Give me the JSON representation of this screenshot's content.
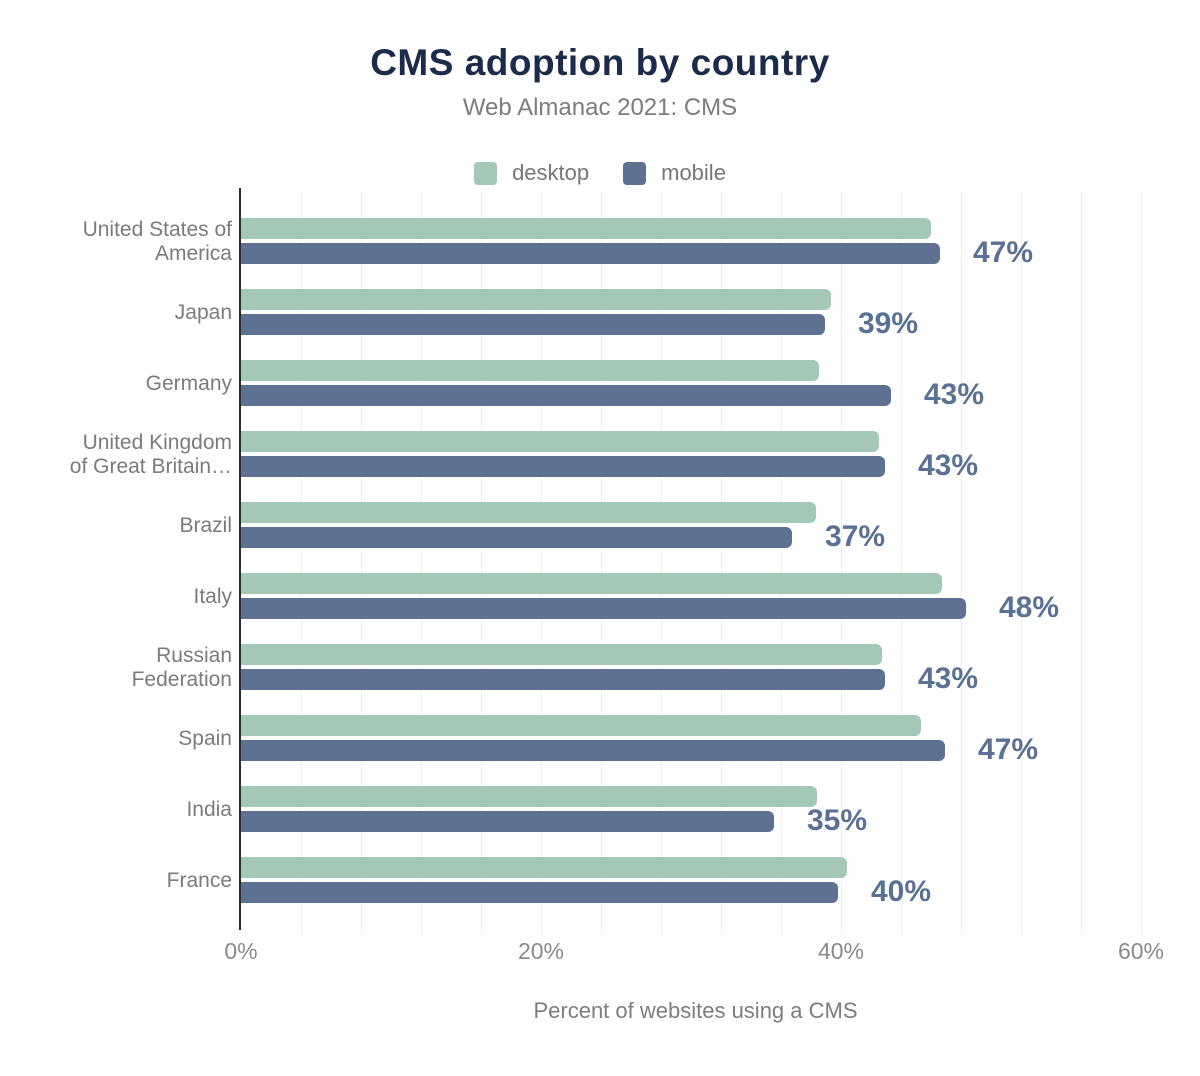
{
  "header": {
    "title": "CMS adoption by country",
    "subtitle": "Web Almanac 2021: CMS"
  },
  "legend": {
    "items": [
      {
        "label": "desktop",
        "color": "#a3c9b6"
      },
      {
        "label": "mobile",
        "color": "#5e7190"
      }
    ]
  },
  "colors": {
    "title": "#1b2b4b",
    "muted_text": "#7c7c7c",
    "desktop_bar": "#a3c9b6",
    "mobile_bar": "#5e7190",
    "value_label": "#5a7193",
    "axis_line": "#2d2d2d",
    "gridline": "#f1f1f1"
  },
  "chart_data": {
    "type": "bar",
    "orientation": "horizontal",
    "title": "CMS adoption by country",
    "subtitle": "Web Almanac 2021: CMS",
    "categories": [
      "United States of America",
      "Japan",
      "Germany",
      "United Kingdom of Great Britain…",
      "Brazil",
      "Italy",
      "Russian Federation",
      "Spain",
      "India",
      "France"
    ],
    "category_label_lines": [
      [
        "United States of",
        "America"
      ],
      [
        "Japan"
      ],
      [
        "Germany"
      ],
      [
        "United Kingdom",
        "of Great Britain…"
      ],
      [
        "Brazil"
      ],
      [
        "Italy"
      ],
      [
        "Russian",
        "Federation"
      ],
      [
        "Spain"
      ],
      [
        "India"
      ],
      [
        "France"
      ]
    ],
    "series": [
      {
        "name": "desktop",
        "values": [
          46.0,
          39.3,
          38.5,
          42.5,
          38.3,
          46.7,
          42.7,
          45.3,
          38.4,
          40.4
        ]
      },
      {
        "name": "mobile",
        "values": [
          46.6,
          38.9,
          43.3,
          42.9,
          36.7,
          48.3,
          42.9,
          46.9,
          35.5,
          39.8
        ]
      }
    ],
    "value_labels": [
      "47%",
      "39%",
      "43%",
      "43%",
      "37%",
      "48%",
      "43%",
      "47%",
      "35%",
      "40%"
    ],
    "xlabel": "Percent of websites using a CMS",
    "x_ticks": [
      {
        "label": "0%",
        "value": 0
      },
      {
        "label": "20%",
        "value": 20
      },
      {
        "label": "40%",
        "value": 40
      },
      {
        "label": "60%",
        "value": 60
      }
    ],
    "xlim": [
      0,
      60.6
    ],
    "minor_gridline_step": 4,
    "grid": true,
    "legend_position": "top"
  }
}
